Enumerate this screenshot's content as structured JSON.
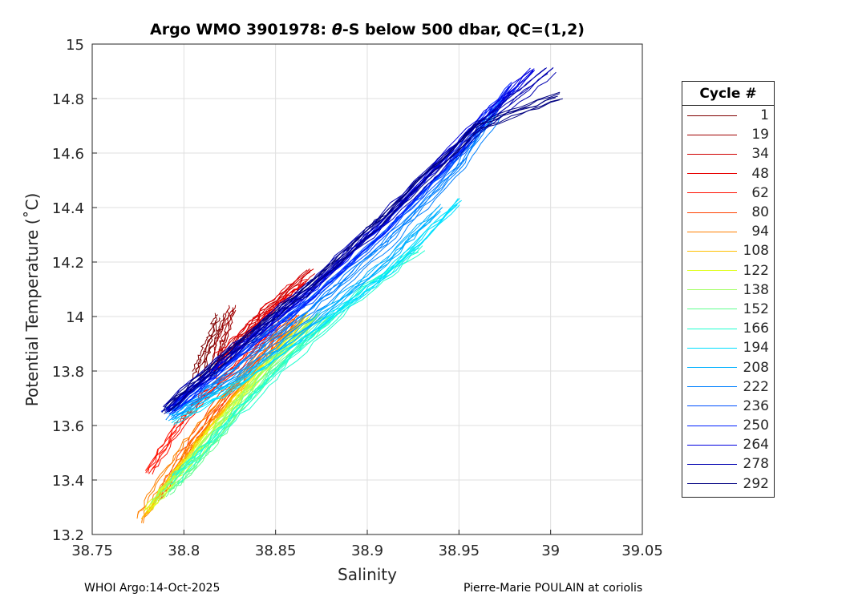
{
  "chart_data": {
    "type": "line",
    "title": "Argo WMO 3901978: θ-S below 500 dbar,  QC=(1,2)",
    "title_parts": {
      "pre": "Argo WMO 3901978: ",
      "theta": "θ",
      "post": "-S below 500 dbar,  QC=(1,2)"
    },
    "xlabel": "Salinity",
    "ylabel": "Potential Temperature (˚C)",
    "xlim": [
      38.75,
      39.05
    ],
    "ylim": [
      13.2,
      15
    ],
    "xticks": [
      "38.75",
      "38.8",
      "38.85",
      "38.9",
      "38.95",
      "39",
      "39.05"
    ],
    "yticks": [
      "13.2",
      "13.4",
      "13.6",
      "13.8",
      "14",
      "14.2",
      "14.4",
      "14.6",
      "14.8",
      "15"
    ],
    "grid": true,
    "legend_title": "Cycle #",
    "legend_position": "outside-right",
    "series": [
      {
        "name": "1",
        "color": "#800000",
        "points": [
          [
            38.808,
            13.79
          ],
          [
            38.812,
            13.86
          ],
          [
            38.817,
            13.93
          ],
          [
            38.82,
            14.0
          ]
        ]
      },
      {
        "name": "19",
        "color": "#a00000",
        "points": [
          [
            38.815,
            13.78
          ],
          [
            38.818,
            13.87
          ],
          [
            38.822,
            13.95
          ],
          [
            38.826,
            14.03
          ]
        ]
      },
      {
        "name": "34",
        "color": "#d00000",
        "points": [
          [
            38.818,
            13.8
          ],
          [
            38.83,
            13.92
          ],
          [
            38.845,
            14.02
          ],
          [
            38.87,
            14.17
          ]
        ]
      },
      {
        "name": "48",
        "color": "#e80000",
        "points": [
          [
            38.82,
            13.85
          ],
          [
            38.835,
            13.95
          ],
          [
            38.85,
            14.05
          ],
          [
            38.865,
            14.13
          ]
        ]
      },
      {
        "name": "62",
        "color": "#ff1000",
        "points": [
          [
            38.78,
            13.42
          ],
          [
            38.795,
            13.58
          ],
          [
            38.81,
            13.7
          ],
          [
            38.83,
            13.82
          ],
          [
            38.85,
            13.97
          ]
        ]
      },
      {
        "name": "80",
        "color": "#ff4000",
        "points": [
          [
            38.785,
            13.33
          ],
          [
            38.8,
            13.5
          ],
          [
            38.82,
            13.7
          ],
          [
            38.84,
            13.85
          ],
          [
            38.86,
            14.0
          ]
        ]
      },
      {
        "name": "94",
        "color": "#ff8000",
        "points": [
          [
            38.777,
            13.26
          ],
          [
            38.79,
            13.4
          ],
          [
            38.805,
            13.55
          ],
          [
            38.83,
            13.75
          ],
          [
            38.86,
            13.98
          ]
        ]
      },
      {
        "name": "108",
        "color": "#ffc000",
        "points": [
          [
            38.778,
            13.27
          ],
          [
            38.793,
            13.42
          ],
          [
            38.81,
            13.57
          ],
          [
            38.835,
            13.77
          ],
          [
            38.865,
            14.0
          ]
        ]
      },
      {
        "name": "122",
        "color": "#e0ff20",
        "points": [
          [
            38.78,
            13.29
          ],
          [
            38.797,
            13.43
          ],
          [
            38.815,
            13.58
          ],
          [
            38.84,
            13.78
          ],
          [
            38.87,
            14.0
          ]
        ]
      },
      {
        "name": "138",
        "color": "#a0ff60",
        "points": [
          [
            38.785,
            13.32
          ],
          [
            38.8,
            13.43
          ],
          [
            38.82,
            13.6
          ],
          [
            38.845,
            13.8
          ],
          [
            38.875,
            14.0
          ]
        ]
      },
      {
        "name": "152",
        "color": "#60ff90",
        "points": [
          [
            38.79,
            13.35
          ],
          [
            38.805,
            13.45
          ],
          [
            38.825,
            13.62
          ],
          [
            38.85,
            13.82
          ],
          [
            38.88,
            14.0
          ]
        ]
      },
      {
        "name": "166",
        "color": "#20ffd0",
        "points": [
          [
            38.795,
            13.4
          ],
          [
            38.81,
            13.5
          ],
          [
            38.83,
            13.65
          ],
          [
            38.86,
            13.85
          ],
          [
            38.9,
            14.1
          ],
          [
            38.93,
            14.25
          ]
        ]
      },
      {
        "name": "194",
        "color": "#00e0ff",
        "points": [
          [
            38.795,
            13.62
          ],
          [
            38.83,
            13.75
          ],
          [
            38.87,
            13.95
          ],
          [
            38.91,
            14.15
          ],
          [
            38.95,
            14.42
          ]
        ]
      },
      {
        "name": "208",
        "color": "#00b0ff",
        "points": [
          [
            38.793,
            13.63
          ],
          [
            38.83,
            13.78
          ],
          [
            38.87,
            13.98
          ],
          [
            38.91,
            14.2
          ],
          [
            38.94,
            14.4
          ]
        ]
      },
      {
        "name": "222",
        "color": "#0080ff",
        "points": [
          [
            38.792,
            13.64
          ],
          [
            38.83,
            13.82
          ],
          [
            38.87,
            14.03
          ],
          [
            38.91,
            14.27
          ],
          [
            38.95,
            14.55
          ],
          [
            38.97,
            14.75
          ]
        ]
      },
      {
        "name": "236",
        "color": "#0050ff",
        "points": [
          [
            38.792,
            13.65
          ],
          [
            38.83,
            13.85
          ],
          [
            38.87,
            14.06
          ],
          [
            38.91,
            14.3
          ],
          [
            38.95,
            14.58
          ],
          [
            38.975,
            14.8
          ]
        ]
      },
      {
        "name": "250",
        "color": "#0020ff",
        "points": [
          [
            38.791,
            13.65
          ],
          [
            38.83,
            13.87
          ],
          [
            38.87,
            14.08
          ],
          [
            38.91,
            14.33
          ],
          [
            38.95,
            14.62
          ],
          [
            38.98,
            14.85
          ]
        ]
      },
      {
        "name": "264",
        "color": "#0000e0",
        "points": [
          [
            38.791,
            13.65
          ],
          [
            38.83,
            13.88
          ],
          [
            38.87,
            14.1
          ],
          [
            38.91,
            14.35
          ],
          [
            38.95,
            14.64
          ],
          [
            38.99,
            14.9
          ]
        ]
      },
      {
        "name": "278",
        "color": "#0000b0",
        "points": [
          [
            38.791,
            13.66
          ],
          [
            38.83,
            13.89
          ],
          [
            38.87,
            14.11
          ],
          [
            38.91,
            14.36
          ],
          [
            38.96,
            14.68
          ],
          [
            39.0,
            14.9
          ]
        ]
      },
      {
        "name": "292",
        "color": "#000080",
        "points": [
          [
            38.79,
            13.66
          ],
          [
            38.83,
            13.9
          ],
          [
            38.87,
            14.12
          ],
          [
            38.91,
            14.37
          ],
          [
            38.96,
            14.7
          ],
          [
            39.005,
            14.81
          ]
        ]
      }
    ]
  },
  "footer": {
    "left": "WHOI Argo:14-Oct-2025",
    "right": "Pierre-Marie POULAIN at coriolis"
  }
}
